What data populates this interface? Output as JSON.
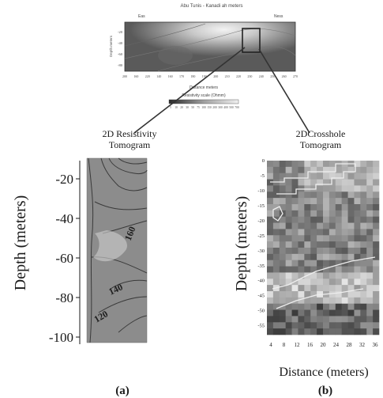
{
  "top_panel": {
    "title": "Abu Tunis - Kanadi ah meters",
    "left_marker": "Eas",
    "right_marker": "Ness",
    "ylabel": "Depth meters",
    "y_ticks": [
      "-20",
      "-40",
      "-60",
      "-80"
    ],
    "x_ticks": [
      "200",
      "160",
      "220",
      "140",
      "160",
      "170",
      "180",
      "190",
      "200",
      "210",
      "220",
      "230",
      "240",
      "250",
      "260",
      "270"
    ],
    "xlabel": "Distance meters",
    "colorbar_label": "Resistivity scale (Ohmm)",
    "colorbar_ticks": [
      "5",
      "10",
      "20",
      "30",
      "50",
      "75",
      "100",
      "150",
      "200",
      "300",
      "400",
      "500",
      "700"
    ]
  },
  "callouts": {
    "left": [
      "2D Resistivity",
      "Tomogram"
    ],
    "right": [
      "2DCrosshole",
      "Tomogram"
    ]
  },
  "panel_a": {
    "ylabel": "Depth (meters)",
    "y_ticks": [
      "-20",
      "-40",
      "-60",
      "-80",
      "-100"
    ],
    "contour_labels": [
      "160",
      "140",
      "120"
    ],
    "caption": "(a)"
  },
  "panel_b": {
    "ylabel": "Depth (meters)",
    "y_ticks": [
      "0",
      "-5",
      "-10",
      "-15",
      "-20",
      "-25",
      "-30",
      "-35",
      "-40",
      "-45",
      "-50",
      "-55"
    ],
    "x_ticks": [
      "4",
      "8",
      "12",
      "16",
      "20",
      "24",
      "28",
      "32",
      "36"
    ],
    "xlabel": "Distance (meters)",
    "caption": "(b)"
  }
}
